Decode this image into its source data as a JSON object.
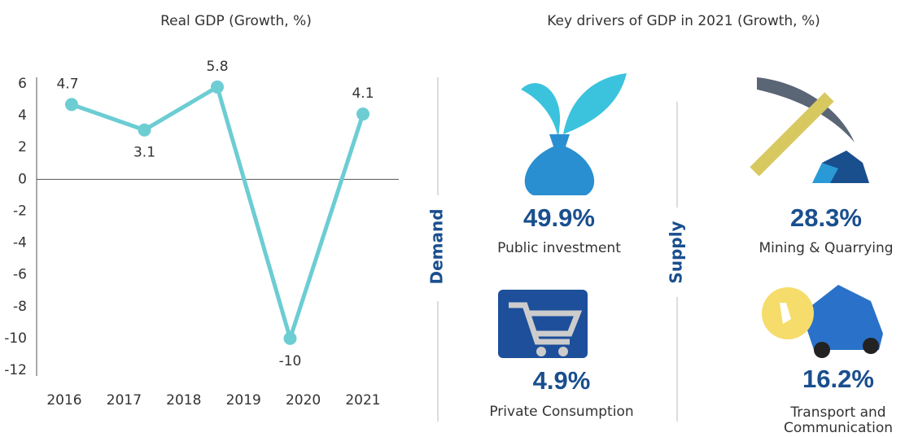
{
  "chart_data": {
    "type": "line",
    "title": "Real GDP (Growth, %)",
    "xtick_labels": [
      "2016",
      "2017",
      "2018",
      "2019",
      "2020",
      "2021"
    ],
    "values": [
      4.7,
      3.1,
      5.8,
      -10,
      4.1
    ],
    "color": "#6ccdd3",
    "ylim": [
      -12,
      6
    ],
    "yticks": [
      6,
      4,
      2,
      0,
      -2,
      -4,
      -6,
      -8,
      -10,
      -12
    ]
  },
  "drivers": {
    "title": "Key drivers of GDP in 2021 (Growth, %)",
    "groups": [
      {
        "label": "Demand",
        "items": [
          {
            "value": "49.9%",
            "label": [
              "Public investment"
            ]
          },
          {
            "value": "4.9%",
            "label": [
              "Private Consumption"
            ]
          }
        ]
      },
      {
        "label": "Supply",
        "items": [
          {
            "value": "28.3%",
            "label": [
              "Mining & Quarrying"
            ]
          },
          {
            "value": "16.2%",
            "label": [
              "Transport and",
              "Communication"
            ]
          }
        ]
      }
    ]
  }
}
